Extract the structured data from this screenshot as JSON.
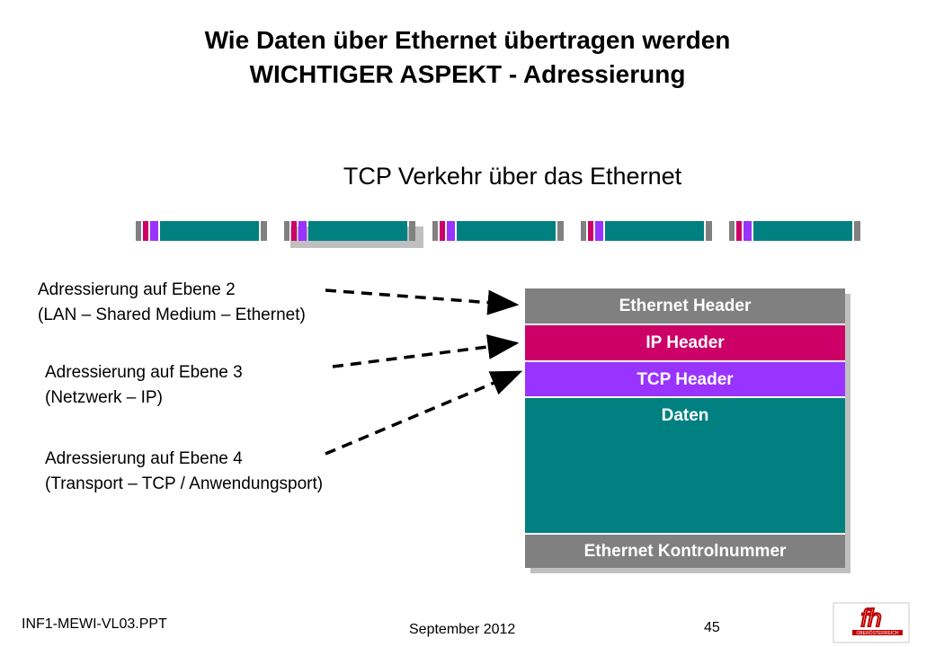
{
  "slide": {
    "title_line1": "Wie Daten über Ethernet übertragen werden",
    "title_line2": "WICHTIGER ASPEKT - Adressierung",
    "subtitle": "TCP Verkehr über das Ethernet"
  },
  "labels": [
    {
      "line1": "Adressierung auf Ebene 2",
      "line2": "(LAN – Shared Medium – Ethernet)"
    },
    {
      "line1": "Adressierung auf Ebene 3",
      "line2": "(Netzwerk – IP)"
    },
    {
      "line1": "Adressierung auf Ebene 4",
      "line2": "(Transport – TCP / Anwendungsport)"
    }
  ],
  "packet": {
    "ethernet_header": "Ethernet Header",
    "ip_header": "IP Header",
    "tcp_header": "TCP Header",
    "data": "Daten",
    "trailer": "Ethernet Kontrolnummer"
  },
  "colors": {
    "ethernet": "#808080",
    "ip": "#cc0066",
    "tcp": "#9933ff",
    "data": "#008080",
    "shadow": "#c0c0c0"
  },
  "footer": {
    "file": "INF1-MEWI-VL03.PPT",
    "date": "September 2012",
    "page": "45"
  },
  "logo": {
    "icon": "fh-logo-icon",
    "text": "fh",
    "subtext": "OBERÖSTERREICH"
  }
}
